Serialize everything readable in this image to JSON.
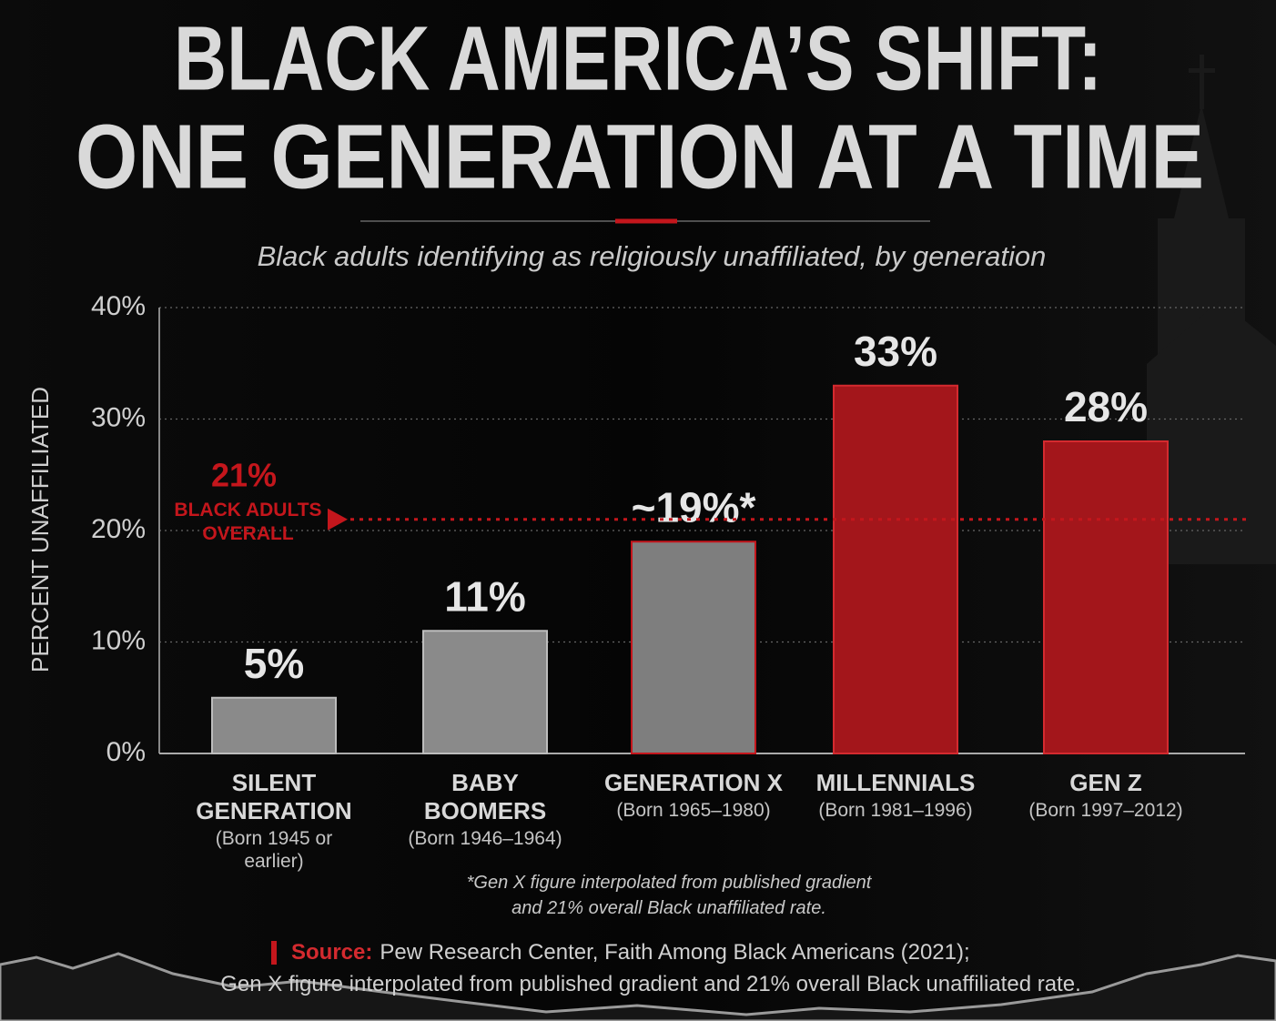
{
  "chart_data": {
    "type": "bar",
    "title": [
      "BLACK AMERICA’S SHIFT:",
      "ONE GENERATION AT A TIME"
    ],
    "subtitle": "Black adults identifying as religiously unaffiliated, by generation",
    "y_label": "PERCENT UNAFFILIATED",
    "categories": [
      "SILENT GENERATION",
      "BABY BOOMERS",
      "GENERATION X",
      "MILLENNIALS",
      "GEN Z"
    ],
    "category_notes": [
      "(Born 1945 or earlier)",
      "(Born 1946–1964)",
      "(Born 1965–1980)",
      "(Born 1981–1996)",
      "(Born 1997–2012)"
    ],
    "values": [
      5,
      11,
      19,
      33,
      28
    ],
    "value_labels": [
      "5%",
      "11%",
      "~19%*",
      "33%",
      "28%"
    ],
    "colors": [
      "#8a8a8a",
      "#8a8a8a",
      "#7e7e7e",
      "#a3161b",
      "#a3161b"
    ],
    "ylim": [
      0,
      40
    ],
    "yticks": [
      {
        "value": 0,
        "label": "0%"
      },
      {
        "value": 10,
        "label": "10%"
      },
      {
        "value": 20,
        "label": "20%"
      },
      {
        "value": 30,
        "label": "30%"
      },
      {
        "value": 40,
        "label": "40%"
      }
    ],
    "grid": true,
    "reference_line": {
      "value": 21,
      "label": "21%",
      "text": "BLACK ADULTS OVERALL",
      "color": "#c4161c"
    },
    "footnote": [
      "*Gen X figure interpolated from published gradient",
      "and 21% overall Black unaffiliated rate."
    ],
    "source": {
      "label": "Source:",
      "lines": [
        "Pew Research Center, Faith Among Black Americans (2021);",
        "Gen X figure interpolated from published gradient and 21% overall Black unaffiliated rate."
      ]
    }
  }
}
